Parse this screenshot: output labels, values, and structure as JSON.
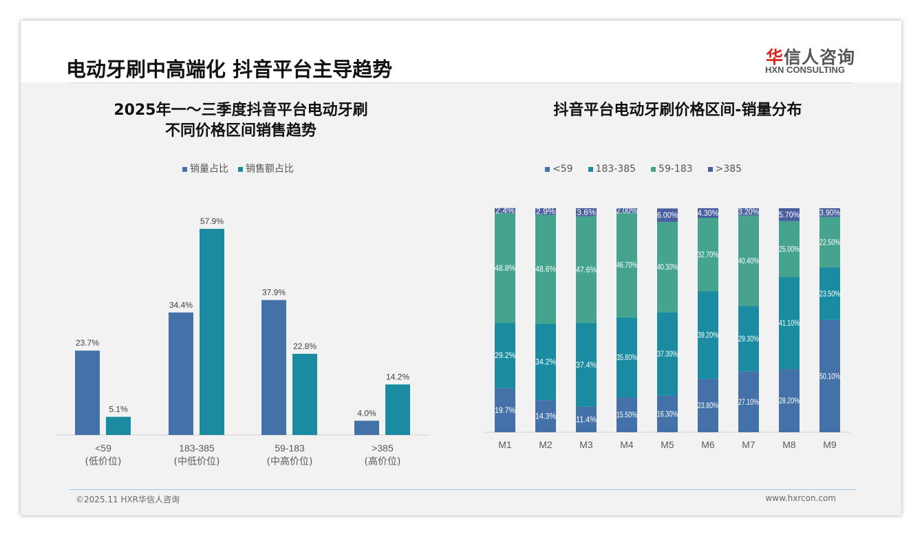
{
  "header": {
    "title": "电动牙刷中高端化 抖音平台主导趋势",
    "logo_cn_red": "华",
    "logo_cn_rest": "信人咨询",
    "logo_en": "HXN CONSULTING"
  },
  "footer": {
    "copyright": "©2025.11 HXR华信人咨询",
    "website": "www.hxrcon.com"
  },
  "colors": {
    "lt59": "#4472a8",
    "r183_385": "#1a8ba0",
    "r59_183": "#45a38e",
    "gt385": "#4a5fa0"
  },
  "chart_data": [
    {
      "type": "bar",
      "title_line1": "2025年一～三季度抖音平台电动牙刷",
      "title_line2": "不同价格区间销售趋势",
      "categories": [
        "<59",
        "183-385",
        "59-183",
        ">385"
      ],
      "category_sub": [
        "(低价位)",
        "(中低价位)",
        "(中高价位)",
        "(高价位)"
      ],
      "legend_position": "top",
      "series": [
        {
          "name": "销量占比",
          "color": "#4472a8",
          "values": [
            23.7,
            34.4,
            37.9,
            4.0
          ],
          "labels": [
            "23.7%",
            "34.4%",
            "37.9%",
            "4.0%"
          ]
        },
        {
          "name": "销售额占比",
          "color": "#1a8ba0",
          "values": [
            5.1,
            57.9,
            22.8,
            14.2
          ],
          "labels": [
            "5.1%",
            "57.9%",
            "22.8%",
            "14.2%"
          ]
        }
      ],
      "ylim": [
        0,
        65
      ]
    },
    {
      "type": "bar",
      "stacked": true,
      "title": "抖音平台电动牙刷价格区间-销量分布",
      "categories": [
        "M1",
        "M2",
        "M3",
        "M4",
        "M5",
        "M6",
        "M7",
        "M8",
        "M9"
      ],
      "legend_position": "top",
      "ylim": [
        0,
        100
      ],
      "series": [
        {
          "name": "<59",
          "color": "#4472a8",
          "values": [
            19.7,
            14.3,
            11.4,
            15.5,
            16.3,
            23.8,
            27.1,
            28.2,
            50.1
          ],
          "labels": [
            "19.7%",
            "14.3%",
            "11.4%",
            "15.50%",
            "16.30%",
            "23.80%",
            "27.10%",
            "28.20%",
            "50.10%"
          ]
        },
        {
          "name": "183-385",
          "color": "#1a8ba0",
          "values": [
            29.2,
            34.2,
            37.4,
            35.8,
            37.3,
            39.2,
            29.3,
            41.1,
            23.5
          ],
          "labels": [
            "29.2%",
            "34.2%",
            "37.4%",
            "35.80%",
            "37.30%",
            "39.20%",
            "29.30%",
            "41.10%",
            "23.50%"
          ]
        },
        {
          "name": "59-183",
          "color": "#45a38e",
          "values": [
            48.8,
            48.6,
            47.6,
            46.7,
            40.3,
            32.7,
            40.4,
            25.0,
            22.5
          ],
          "labels": [
            "48.8%",
            "48.6%",
            "47.6%",
            "46.70%",
            "40.30%",
            "32.70%",
            "40.40%",
            "25.00%",
            "22.50%"
          ]
        },
        {
          "name": ">385",
          "color": "#4a5fa0",
          "values": [
            2.4,
            2.9,
            3.6,
            2.0,
            6.0,
            4.3,
            3.2,
            5.7,
            3.9
          ],
          "labels": [
            "2.4%",
            "2.9%",
            "3.6%",
            "2.00%",
            "6.00%",
            "4.30%",
            "3.20%",
            "5.70%",
            "3.90%"
          ]
        }
      ]
    }
  ]
}
